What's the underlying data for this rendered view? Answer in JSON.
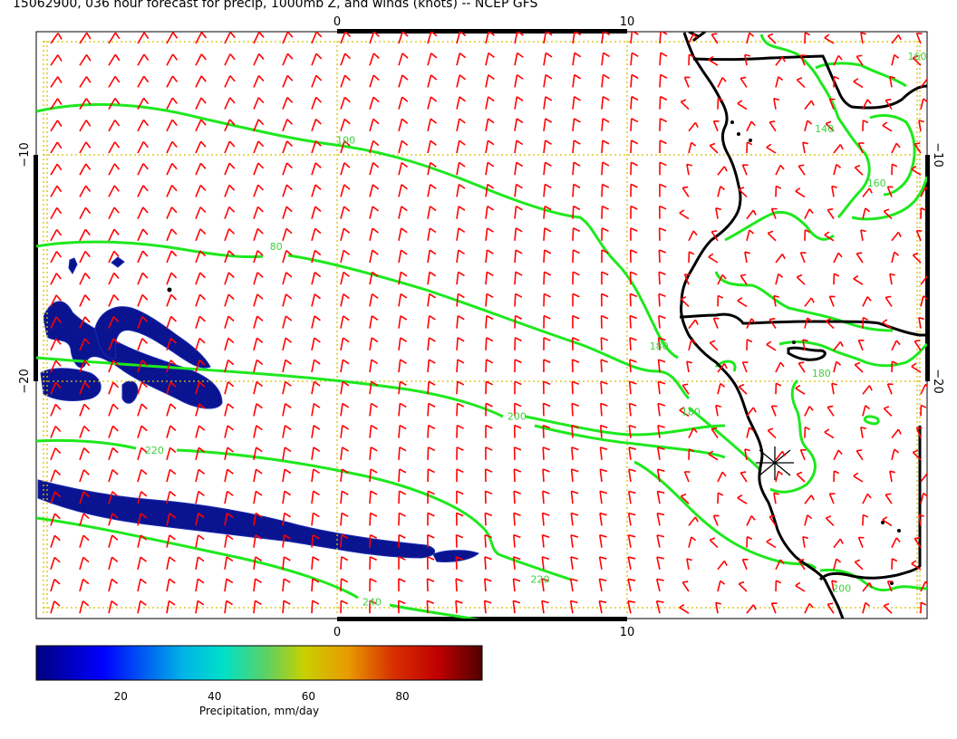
{
  "title": "15062900, 036 hour forecast for precip, 1000mb Z, and winds (knots) -- NCEP GFS",
  "axes": {
    "top_labels": [
      {
        "lon": 0,
        "text": "0"
      },
      {
        "lon": 10,
        "text": "10"
      }
    ],
    "bottom_labels": [
      {
        "lon": 0,
        "text": "0"
      },
      {
        "lon": 10,
        "text": "10"
      }
    ],
    "left_labels": [
      {
        "lat": -10,
        "text": "−10"
      },
      {
        "lat": -20,
        "text": "−20"
      }
    ],
    "right_labels": [
      {
        "lat": -10,
        "text": "−10"
      },
      {
        "lat": -20,
        "text": "−20"
      }
    ]
  },
  "contour_labels": [
    {
      "text": "100",
      "lon": 0.3,
      "lat": -9.5
    },
    {
      "text": "80",
      "lon": -2.1,
      "lat": -14.2
    },
    {
      "text": "200",
      "lon": 6.2,
      "lat": -21.7
    },
    {
      "text": "220",
      "lon": -6.3,
      "lat": -23.2
    },
    {
      "text": "240",
      "lon": 1.2,
      "lat": -29.9
    },
    {
      "text": "220",
      "lon": 7.0,
      "lat": -28.9
    },
    {
      "text": "180",
      "lon": 11.1,
      "lat": -18.6
    },
    {
      "text": "180",
      "lon": 12.2,
      "lat": -21.5
    },
    {
      "text": "180",
      "lon": 16.7,
      "lat": -19.8
    },
    {
      "text": "160",
      "lon": 18.6,
      "lat": -11.4
    },
    {
      "text": "160",
      "lon": 20.0,
      "lat": -5.8
    },
    {
      "text": "140",
      "lon": 16.8,
      "lat": -9.0
    },
    {
      "text": "200",
      "lon": 17.4,
      "lat": -29.3
    }
  ],
  "colorbar": {
    "title": "Precipitation, mm/day",
    "ticks": [
      {
        "value": 20,
        "text": "20"
      },
      {
        "value": 40,
        "text": "40"
      },
      {
        "value": 60,
        "text": "60"
      },
      {
        "value": 80,
        "text": "80"
      }
    ],
    "range": [
      2,
      97
    ],
    "colors": [
      "#00008f",
      "#0000ff",
      "#00b0e0",
      "#00e0c0",
      "#50d070",
      "#a8d030",
      "#e0c800",
      "#e08a00",
      "#d84000",
      "#c80000",
      "#8a0000",
      "#5a0000"
    ]
  },
  "map_extent": {
    "lon": [
      -10.2,
      20.2
    ],
    "lat": [
      -30.8,
      -4.6
    ]
  },
  "colors": {
    "wind": "#ff0000",
    "contour": "#1ee81e",
    "coast": "#000000",
    "grid": "#d8c000",
    "precip": "#0a1490"
  }
}
